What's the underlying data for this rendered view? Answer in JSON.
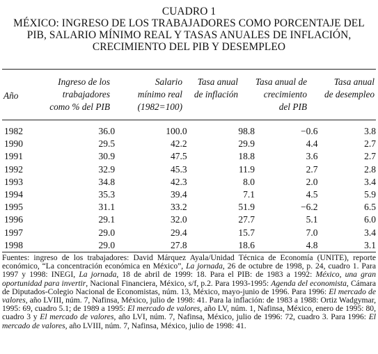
{
  "title": {
    "line1": "CUADRO 1",
    "line2": "MÉXICO: INGRESO DE LOS TRABAJADORES COMO PORCENTAJE DEL",
    "line3": "PIB, SALARIO MÍNIMO REAL Y TASAS ANUALES DE INFLACIÓN,",
    "line4": "CRECIMIENTO DEL PIB Y DESEMPLEO"
  },
  "headers": {
    "year": "Año",
    "income": [
      "Ingreso de los",
      "trabajadores",
      "como % del PIB"
    ],
    "wage": [
      "Salario",
      "mínimo real",
      "(1982=100)"
    ],
    "inflation": [
      "Tasa anual",
      "de inflación"
    ],
    "growth": [
      "Tasa anual de",
      "crecimiento",
      "del PIB"
    ],
    "unemployment": [
      "Tasa anual",
      "de desempleo"
    ]
  },
  "rows": [
    {
      "year": "1982",
      "income": "36.0",
      "wage": "100.0",
      "inflation": "98.8",
      "growth": "−0.6",
      "unemployment": "3.8"
    },
    {
      "year": "1990",
      "income": "29.5",
      "wage": "42.2",
      "inflation": "29.9",
      "growth": "4.4",
      "unemployment": "2.7"
    },
    {
      "year": "1991",
      "income": "30.9",
      "wage": "47.5",
      "inflation": "18.8",
      "growth": "3.6",
      "unemployment": "2.7"
    },
    {
      "year": "1992",
      "income": "32.9",
      "wage": "45.3",
      "inflation": "11.9",
      "growth": "2.7",
      "unemployment": "2.8"
    },
    {
      "year": "1993",
      "income": "34.8",
      "wage": "42.3",
      "inflation": "8.0",
      "growth": "2.0",
      "unemployment": "3.4"
    },
    {
      "year": "1994",
      "income": "35.3",
      "wage": "39.4",
      "inflation": "7.1",
      "growth": "4.5",
      "unemployment": "5.9"
    },
    {
      "year": "1995",
      "income": "31.1",
      "wage": "33.2",
      "inflation": "51.9",
      "growth": "−6.2",
      "unemployment": "6.5"
    },
    {
      "year": "1996",
      "income": "29.1",
      "wage": "32.0",
      "inflation": "27.7",
      "growth": "5.1",
      "unemployment": "6.0"
    },
    {
      "year": "1997",
      "income": "29.0",
      "wage": "29.4",
      "inflation": "15.7",
      "growth": "7.0",
      "unemployment": "3.4"
    },
    {
      "year": "1998",
      "income": "29.0",
      "wage": "27.8",
      "inflation": "18.6",
      "growth": "4.8",
      "unemployment": "3.1"
    }
  ],
  "notes": [
    {
      "t": "Fuentes: ingreso de los trabajadores: David Márquez Ayala/Unidad Técnica de Economía (UNITE), reporte económico, “La concentración económica en México”, "
    },
    {
      "t": "La jornada",
      "i": true
    },
    {
      "t": ", 26 de octubre de 1998, p. 24, cuadro 1. Para 1997 y 1998: INEGI, "
    },
    {
      "t": "La jornada",
      "i": true
    },
    {
      "t": ", 18 de abril de 1999: 18. Para el PIB: de 1983 a 1992: "
    },
    {
      "t": "México, una gran oportunidad para invertir",
      "i": true
    },
    {
      "t": ", Nacional Financiera, México, s/f, p.2. Para 1993-1995: "
    },
    {
      "t": "Agenda del economista",
      "i": true
    },
    {
      "t": ", Cámara de Diputados-Colegio Nacional de Economistas, núm. 13, México, mayo-junio de 1996. Para 1996: "
    },
    {
      "t": "El mercado de valores",
      "i": true
    },
    {
      "t": ", año LVIII, núm. 7, Nafinsa, México, julio de 1998: 41. Para la inflación: de 1983 a 1988: Ortiz Wadgymar, 1995: 69, cuadro 5.1; de 1989 a 1995: "
    },
    {
      "t": "El mercado de valores",
      "i": true
    },
    {
      "t": ", año LV, núm. 1, Nafinsa, México, enero de 1995: 80, cuadro 3 y "
    },
    {
      "t": "El mercado de valores",
      "i": true
    },
    {
      "t": ", año LVI, núm. 7, Nafinsa, México, julio de 1996: 72, cuadro 3. Para 1996: "
    },
    {
      "t": "El mercado de valores",
      "i": true
    },
    {
      "t": ", año LVIII, núm. 7, Nafinsa, México, julio de 1998: 41."
    }
  ]
}
